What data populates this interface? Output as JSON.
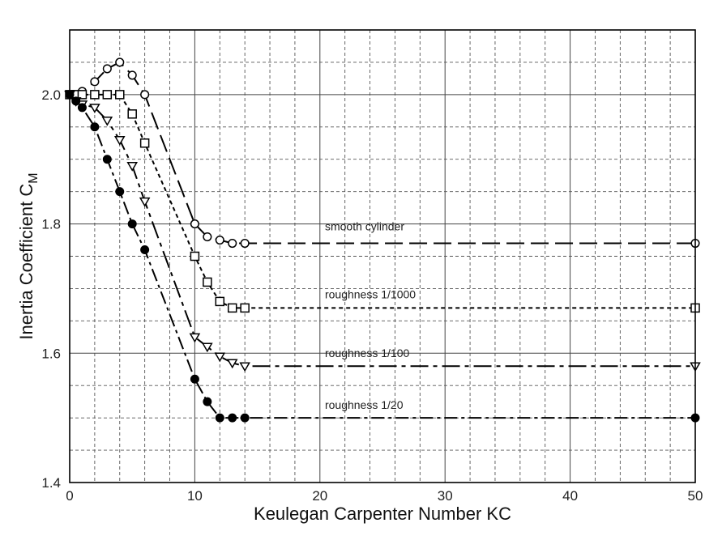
{
  "chart_data": {
    "type": "line",
    "xlabel": "Keulegan Carpenter Number KC",
    "ylabel": "Inertia Coefficient C",
    "ylabel_sub": "M",
    "xlim": [
      0,
      50
    ],
    "ylim": [
      1.4,
      2.1
    ],
    "xticks": [
      0,
      10,
      20,
      30,
      40,
      50
    ],
    "yticks": [
      1.4,
      1.6,
      1.8,
      2.0
    ],
    "grid": true,
    "series": [
      {
        "name": "smooth cylinder",
        "marker": "circle-open",
        "x": [
          0,
          0.5,
          1,
          2,
          3,
          4,
          5,
          6,
          10,
          11,
          12,
          13,
          14,
          50
        ],
        "y": [
          2.0,
          2.0,
          2.005,
          2.02,
          2.04,
          2.05,
          2.03,
          2.0,
          1.8,
          1.78,
          1.775,
          1.77,
          1.77,
          1.77
        ]
      },
      {
        "name": "roughness 1/1000",
        "marker": "square-open",
        "x": [
          0,
          0.5,
          1,
          2,
          3,
          4,
          5,
          6,
          10,
          11,
          12,
          13,
          14,
          50
        ],
        "y": [
          2.0,
          2.0,
          2.0,
          2.0,
          2.0,
          2.0,
          1.97,
          1.925,
          1.75,
          1.71,
          1.68,
          1.67,
          1.67,
          1.67
        ]
      },
      {
        "name": "roughness 1/100",
        "marker": "triangle-open",
        "x": [
          0,
          0.5,
          1,
          2,
          3,
          4,
          5,
          6,
          10,
          11,
          12,
          13,
          14,
          50
        ],
        "y": [
          2.0,
          1.99,
          1.985,
          1.98,
          1.96,
          1.93,
          1.89,
          1.835,
          1.625,
          1.61,
          1.595,
          1.585,
          1.58,
          1.58
        ]
      },
      {
        "name": "roughness 1/20",
        "marker": "circle-filled",
        "x": [
          0,
          0.5,
          1,
          2,
          3,
          4,
          5,
          6,
          10,
          11,
          12,
          13,
          14,
          50
        ],
        "y": [
          2.0,
          1.99,
          1.98,
          1.95,
          1.9,
          1.85,
          1.8,
          1.76,
          1.56,
          1.525,
          1.5,
          1.5,
          1.5,
          1.5
        ]
      }
    ],
    "annotations": [
      {
        "text": "smooth cylinder",
        "x": 20.4,
        "y": 1.79
      },
      {
        "text": "roughness 1/1000",
        "x": 20.4,
        "y": 1.685
      },
      {
        "text": "roughness 1/100",
        "x": 20.4,
        "y": 1.594
      },
      {
        "text": "roughness 1/20",
        "x": 20.4,
        "y": 1.514
      }
    ]
  }
}
